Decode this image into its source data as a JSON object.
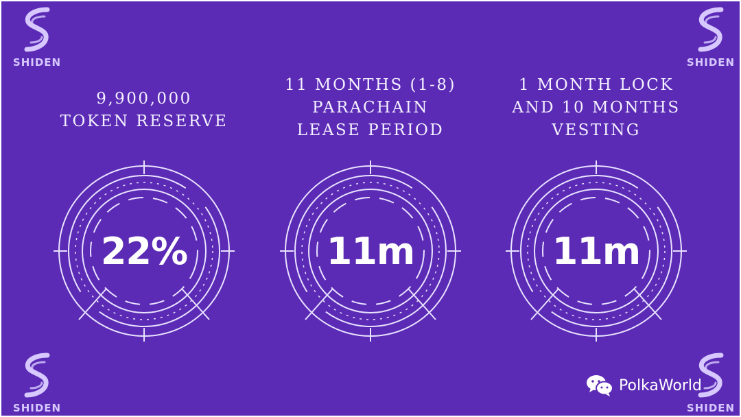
{
  "brand": {
    "logo_text": "SHIDEN",
    "logo_icon": "shiden-s-logo-icon"
  },
  "stats": [
    {
      "heading_lines": [
        "9,900,000",
        "TOKEN RESERVE"
      ],
      "value": "22%"
    },
    {
      "heading_lines": [
        "11 MONTHS (1-8)",
        "PARACHAIN",
        "LEASE PERIOD"
      ],
      "value": "11m"
    },
    {
      "heading_lines": [
        "1 MONTH LOCK",
        "AND 10 MONTHS",
        "VESTING"
      ],
      "value": "11m"
    }
  ],
  "watermark": {
    "text": "PolkaWorld",
    "icon": "wechat-icon"
  },
  "colors": {
    "background": "#5b2bb5",
    "ring": "#e9e2ff",
    "logo": "#d7c9ff"
  }
}
